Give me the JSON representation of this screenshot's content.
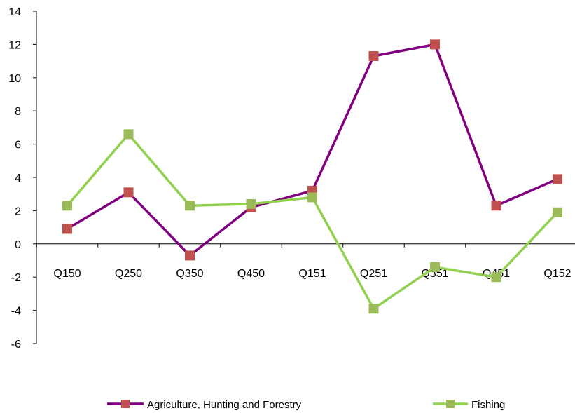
{
  "chart_data": {
    "type": "line",
    "categories": [
      "Q150",
      "Q250",
      "Q350",
      "Q450",
      "Q151",
      "Q251",
      "Q351",
      "Q451",
      "Q152"
    ],
    "series": [
      {
        "name": "Agriculture, Hunting and Forestry",
        "color": "#800080",
        "marker_color": "#c0504d",
        "values": [
          0.9,
          3.1,
          -0.7,
          2.2,
          3.2,
          11.3,
          12.0,
          2.3,
          3.9
        ]
      },
      {
        "name": "Fishing",
        "color": "#92d050",
        "marker_color": "#9bbb59",
        "values": [
          2.3,
          6.6,
          2.3,
          2.4,
          2.8,
          -3.9,
          -1.4,
          -2.0,
          1.9
        ]
      }
    ],
    "ylim": [
      -6,
      14
    ],
    "yticks": [
      -6,
      -4,
      -2,
      0,
      2,
      4,
      6,
      8,
      10,
      12,
      14
    ],
    "grid": false,
    "legend_position": "bottom"
  }
}
